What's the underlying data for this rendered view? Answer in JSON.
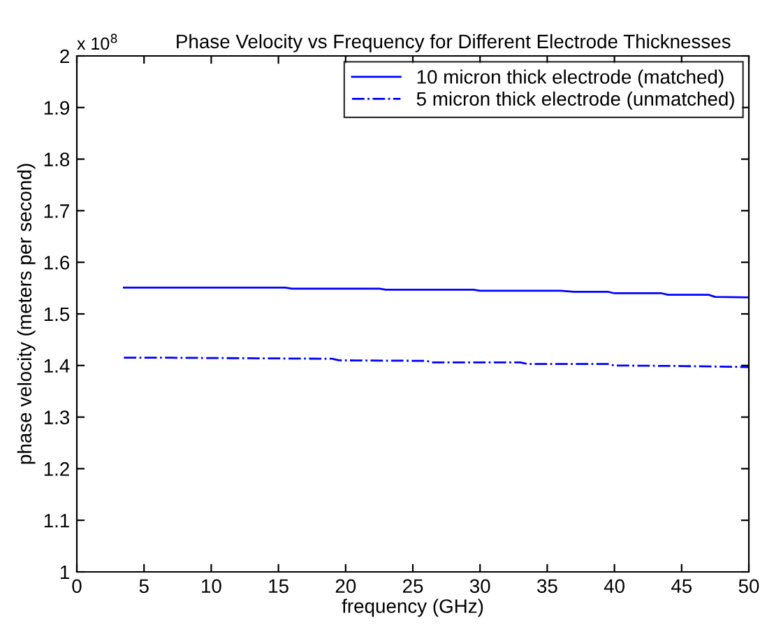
{
  "chart_data": {
    "type": "line",
    "title": "Phase Velocity vs Frequency for Different Electrode Thicknesses",
    "xlabel": "frequency (GHz)",
    "ylabel": "phase velocity (meters per second)",
    "annotations": [
      "x 10$^{8}$"
    ],
    "xlim": [
      0,
      50
    ],
    "xticks": [
      0,
      5,
      10,
      15,
      20,
      25,
      30,
      35,
      40,
      45,
      50
    ],
    "ylim": [
      1,
      2
    ],
    "yticks": [
      1,
      1.1,
      1.2,
      1.3,
      1.4,
      1.5,
      1.6,
      1.7,
      1.8,
      1.9,
      2
    ],
    "grid": false,
    "legend": "top right",
    "marker": "none",
    "series": [
      {
        "name": "10 micron thick electrode (matched)",
        "color": "#0000ff",
        "line_style": "solid",
        "x": [
          3.5,
          15.5,
          16,
          22.5,
          23,
          29.5,
          30,
          36,
          37,
          39.5,
          40,
          43.5,
          44,
          47,
          47.5,
          50
        ],
        "values": [
          1.551,
          1.551,
          1.549,
          1.549,
          1.547,
          1.547,
          1.545,
          1.545,
          1.543,
          1.543,
          1.54,
          1.54,
          1.537,
          1.537,
          1.533,
          1.532
        ]
      },
      {
        "name": "5 micron thick electrode (unmatched)",
        "color": "#0000ff",
        "line_style": "dashdot",
        "x": [
          3.5,
          7,
          19,
          19.5,
          26,
          26.5,
          33,
          33.5,
          39.5,
          40,
          45,
          50
        ],
        "values": [
          1.415,
          1.415,
          1.413,
          1.41,
          1.409,
          1.406,
          1.406,
          1.403,
          1.403,
          1.4,
          1.399,
          1.397
        ]
      }
    ]
  }
}
